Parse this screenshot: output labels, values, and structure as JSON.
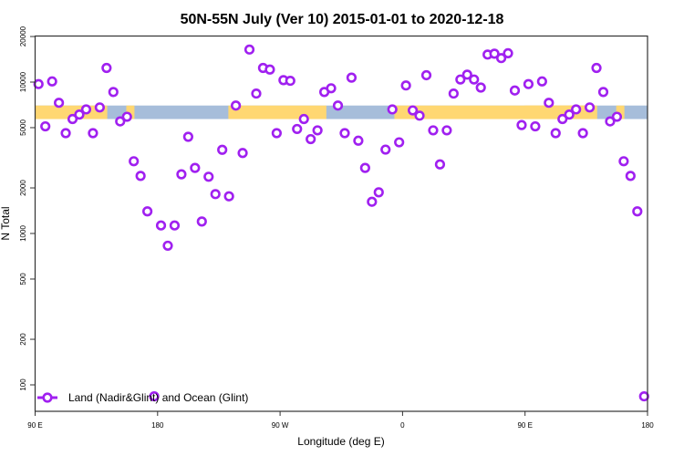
{
  "chart_data": {
    "type": "scatter",
    "title": "50N-55N July (Ver 10)   2015-01-01 to 2020-12-18",
    "xlabel": "Longitude (deg E)",
    "ylabel": "N Total",
    "y_scale": "log",
    "ylim": [
      70,
      20000
    ],
    "xlim_deg_east": [
      90,
      180
    ],
    "x_wraps_past_180": true,
    "x_ticks": [
      {
        "lon": 90,
        "label": "90 E"
      },
      {
        "lon": 180,
        "label": "180"
      },
      {
        "lon": -90,
        "label": "90 W"
      },
      {
        "lon": 0,
        "label": "0"
      },
      {
        "lon": 90,
        "label": "90 E"
      },
      {
        "lon": 180,
        "label": "180"
      }
    ],
    "y_ticks": [
      {
        "value": 100,
        "label": "100"
      },
      {
        "value": 200,
        "label": "200"
      },
      {
        "value": 500,
        "label": "500"
      },
      {
        "value": 1000,
        "label": "1000"
      },
      {
        "value": 2000,
        "label": "2000"
      },
      {
        "value": 5000,
        "label": "5000"
      },
      {
        "value": 10000,
        "label": "10000"
      },
      {
        "value": 20000,
        "label": "20000"
      }
    ],
    "grid": false,
    "legend": {
      "position": "bottom-left",
      "entries": [
        {
          "label": "Land (Nadir&Glint) and Ocean (Glint)",
          "color": "#A020F0"
        }
      ]
    },
    "colors": {
      "series": "#A020F0",
      "land": "#FFD772",
      "ocean": "#A6BDDA"
    },
    "surface_band": {
      "land_segments_deg_east": [
        [
          90,
          143
        ],
        [
          157,
          163
        ],
        [
          -128,
          -56
        ],
        [
          -6,
          142
        ]
      ],
      "y_range_value": [
        5700,
        7000
      ]
    },
    "series": [
      {
        "name": "Land (Nadir&Glint) and Ocean (Glint)",
        "lon": [
          92.5,
          97.5,
          102.5,
          107.5,
          112.5,
          117.5,
          122.5,
          127.5,
          132.5,
          137.5,
          142.5,
          147.5,
          152.5,
          157.5,
          162.5,
          167.5,
          172.5,
          177.5,
          -177.5,
          -172.5,
          -167.5,
          -162.5,
          -157.5,
          -152.5,
          -147.5,
          -142.5,
          -137.5,
          -132.5,
          -127.5,
          -122.5,
          -117.5,
          -112.5,
          -107.5,
          -102.5,
          -97.5,
          -92.5,
          -87.5,
          -82.5,
          -77.5,
          -72.5,
          -67.5,
          -62.5,
          -57.5,
          -52.5,
          -47.5,
          -42.5,
          -37.5,
          -32.5,
          -27.5,
          -22.5,
          -17.5,
          -12.5,
          -7.5,
          -2.5,
          2.5,
          7.5,
          12.5,
          17.5,
          22.5,
          27.5,
          32.5,
          37.5,
          42.5,
          47.5,
          52.5,
          57.5,
          62.5,
          67.5,
          72.5,
          77.5,
          82.5,
          87.5,
          92.5,
          97.5,
          102.5,
          107.5,
          112.5,
          117.5,
          122.5,
          127.5,
          132.5,
          137.5,
          142.5,
          147.5,
          152.5,
          157.5,
          162.5,
          167.5,
          172.5,
          177.5
        ],
        "values": [
          9700,
          5100,
          10100,
          7300,
          4600,
          5700,
          6100,
          6600,
          4600,
          6800,
          12400,
          8600,
          5500,
          5900,
          3000,
          2400,
          1400,
          84,
          1130,
          830,
          1130,
          2460,
          4350,
          2710,
          1200,
          2370,
          1820,
          3570,
          1760,
          7000,
          3400,
          16400,
          8400,
          12400,
          12100,
          4600,
          10300,
          10200,
          4900,
          5700,
          4200,
          4800,
          8600,
          9100,
          7000,
          4600,
          10700,
          4100,
          2710,
          1620,
          1870,
          3580,
          6600,
          4000,
          9500,
          6500,
          6000,
          11100,
          4800,
          2860,
          4800,
          8400,
          10400,
          11200,
          10400,
          9200,
          15200,
          15400,
          14400,
          15500,
          8800,
          5200,
          9700,
          5100,
          10100,
          7300,
          4600,
          5700,
          6100,
          6600,
          4600,
          6800,
          12400,
          8600,
          5500,
          5900,
          3000,
          2400,
          1400,
          84
        ]
      }
    ]
  }
}
